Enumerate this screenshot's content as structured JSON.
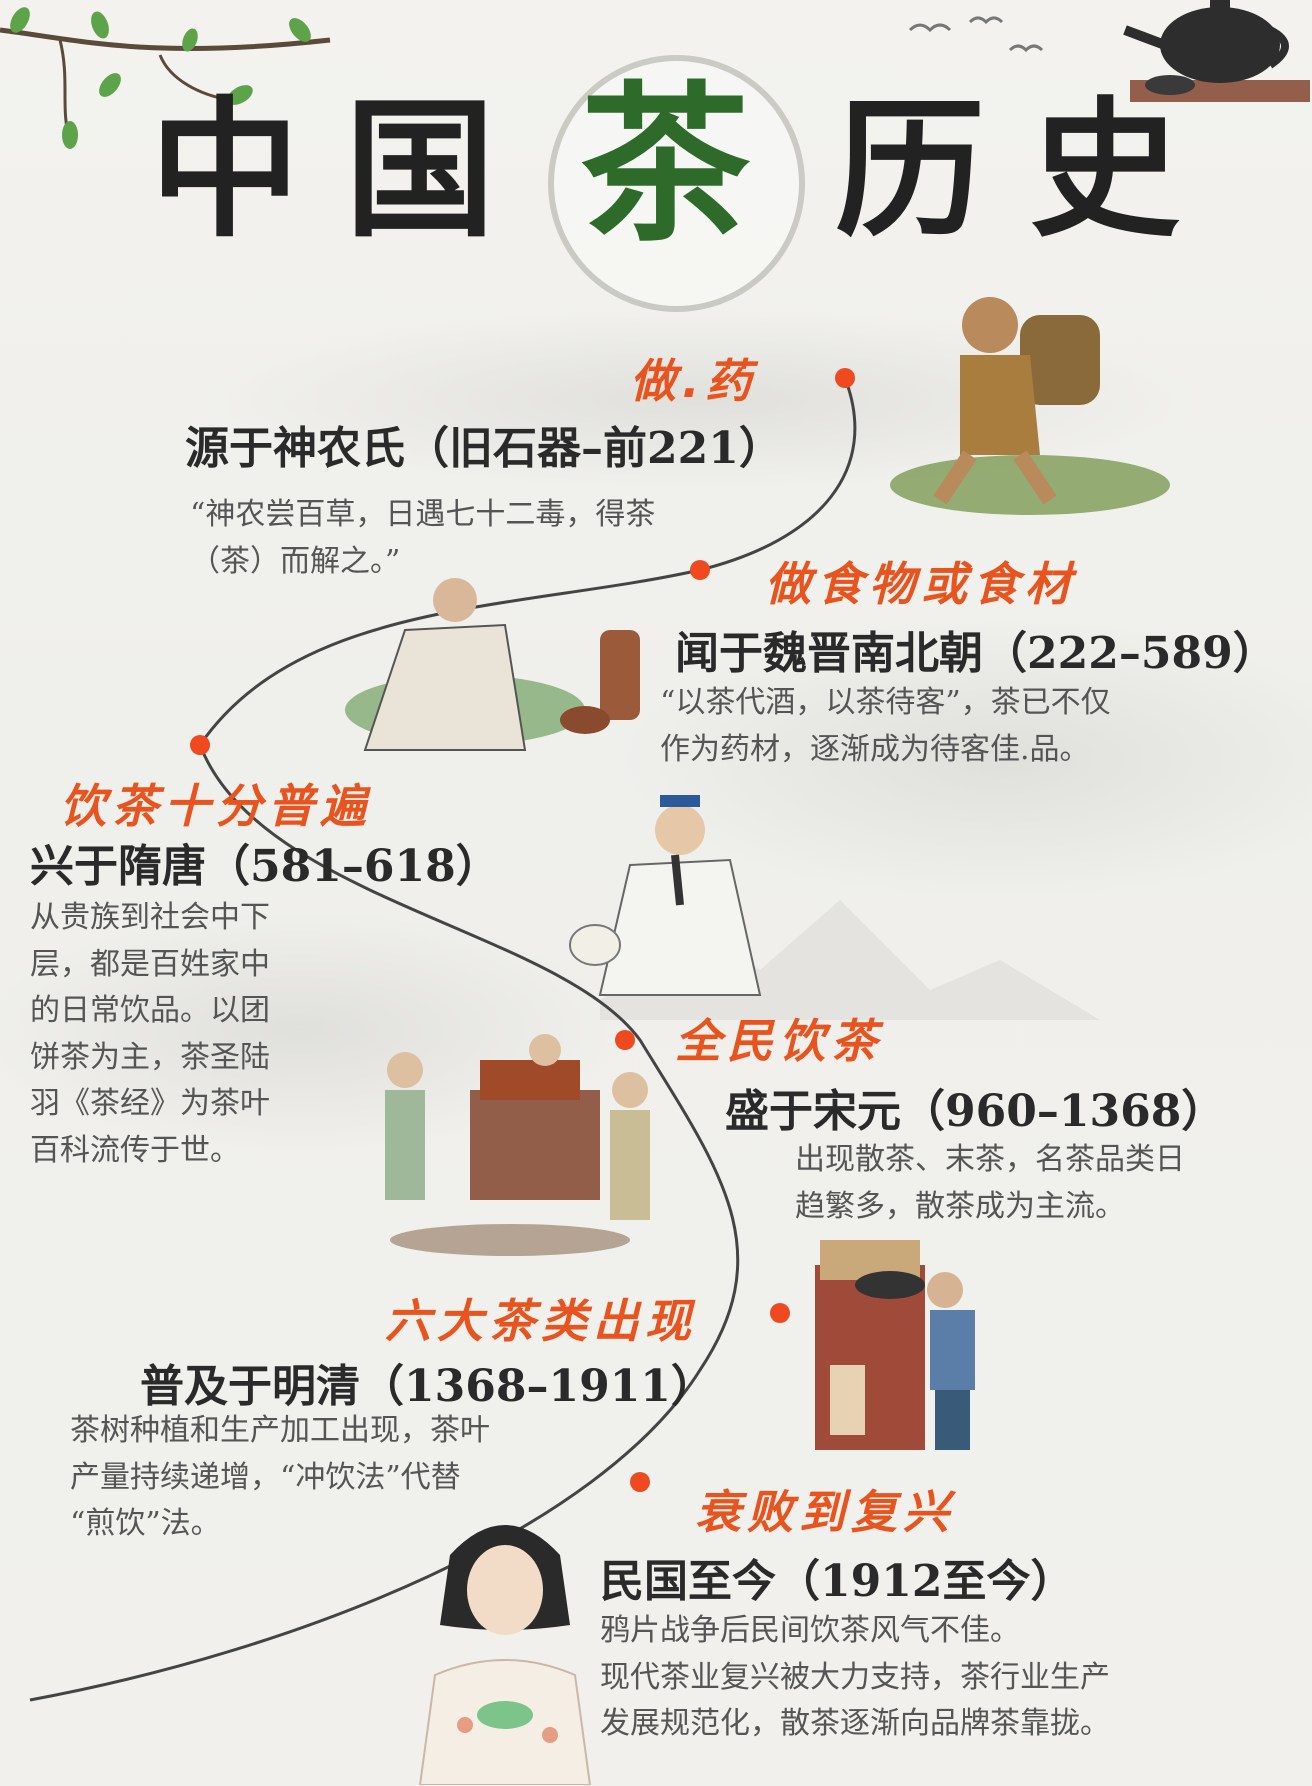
{
  "title": {
    "char1": "中",
    "char2": "国",
    "char3": "茶",
    "char4": "历",
    "char5": "史"
  },
  "colors": {
    "accent_orange": "#e8531e",
    "dot_red": "#ef4a1f",
    "tea_green": "#2e6b2a",
    "text_dark": "#2a2a2a",
    "text_muted": "#555555"
  },
  "icons": [
    "branch-icon",
    "teapot-icon",
    "birds-icon",
    "shennong-illustration",
    "scholar-illustration",
    "tang-scholar-illustration",
    "market-illustration",
    "stove-illustration",
    "lady-tea-illustration"
  ],
  "timeline": [
    {
      "tag": "做.药",
      "era": "源于神农氏（旧石器–前221）",
      "desc_lines": [
        "“神农尝百草，日遇七十二毒，得茶",
        "（茶）而解之。”"
      ]
    },
    {
      "tag": "做食物或食材",
      "era": "闻于魏晋南北朝（222–589）",
      "desc_lines": [
        "“以茶代酒，以茶待客”，茶已不仅",
        "作为药材，逐渐成为待客佳.品。"
      ]
    },
    {
      "tag": "饮茶十分普遍",
      "era": "兴于隋唐（581–618）",
      "desc_lines": [
        "从贵族到社会中下",
        "层，都是百姓家中",
        "的日常饮品。以团",
        "饼茶为主，茶圣陆",
        "羽《茶经》为茶叶",
        "百科流传于世。"
      ]
    },
    {
      "tag": "全民饮茶",
      "era": "盛于宋元（960–1368）",
      "desc_lines": [
        "出现散茶、末茶，名茶品类日",
        "趋繁多，散茶成为主流。"
      ]
    },
    {
      "tag": "六大茶类出现",
      "era": "普及于明清（1368–1911）",
      "desc_lines": [
        "茶树种植和生产加工出现，茶叶",
        "产量持续递增，“冲饮法”代替",
        "“煎饮”法。"
      ]
    },
    {
      "tag": "衰败到复兴",
      "era": "民国至今（1912至今）",
      "desc_lines": [
        "鸦片战争后民间饮茶风气不佳。",
        "现代茶业复兴被大力支持，茶行业生产",
        "发展规范化，散茶逐渐向品牌茶靠拢。"
      ]
    }
  ]
}
